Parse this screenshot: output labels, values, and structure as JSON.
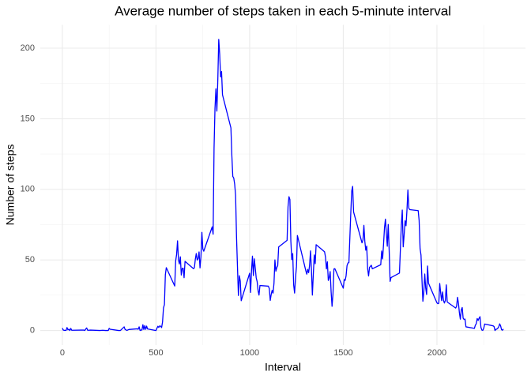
{
  "chart_data": {
    "type": "line",
    "title": "Average number of steps taken in each 5-minute interval",
    "xlabel": "Interval",
    "ylabel": "Number of steps",
    "xlim": [
      -117.75,
      2472.75
    ],
    "ylim": [
      -10.3,
      216.5
    ],
    "xticks": [
      0,
      500,
      1000,
      1500,
      2000
    ],
    "yticks": [
      0,
      50,
      100,
      150,
      200
    ],
    "x_minor_ticks": [
      250,
      750,
      1250,
      1750,
      2250
    ],
    "y_minor_ticks": [
      25,
      75,
      125,
      175
    ],
    "grid": true,
    "series": [
      {
        "name": "steps",
        "color": "#0000ff",
        "x": [
          0,
          5,
          10,
          20,
          25,
          30,
          35,
          40,
          45,
          50,
          55,
          100,
          115,
          120,
          125,
          130,
          135,
          140,
          150,
          200,
          215,
          230,
          245,
          250,
          255,
          300,
          310,
          330,
          335,
          345,
          355,
          400,
          405,
          410,
          415,
          420,
          425,
          430,
          435,
          440,
          445,
          450,
          455,
          500,
          505,
          510,
          515,
          520,
          525,
          530,
          535,
          540,
          545,
          550,
          555,
          600,
          605,
          610,
          615,
          620,
          625,
          630,
          635,
          640,
          645,
          650,
          655,
          700,
          705,
          710,
          715,
          720,
          725,
          730,
          735,
          740,
          745,
          750,
          755,
          800,
          805,
          810,
          815,
          820,
          825,
          830,
          835,
          840,
          845,
          850,
          855,
          900,
          905,
          910,
          915,
          920,
          925,
          930,
          935,
          940,
          945,
          950,
          955,
          1000,
          1005,
          1010,
          1015,
          1020,
          1025,
          1030,
          1035,
          1040,
          1045,
          1050,
          1055,
          1100,
          1105,
          1110,
          1115,
          1120,
          1125,
          1130,
          1135,
          1140,
          1145,
          1150,
          1155,
          1200,
          1205,
          1210,
          1215,
          1220,
          1225,
          1230,
          1235,
          1240,
          1245,
          1250,
          1255,
          1300,
          1305,
          1310,
          1315,
          1320,
          1325,
          1330,
          1335,
          1340,
          1345,
          1350,
          1355,
          1400,
          1405,
          1410,
          1415,
          1420,
          1425,
          1430,
          1435,
          1440,
          1445,
          1450,
          1455,
          1500,
          1505,
          1510,
          1515,
          1520,
          1525,
          1530,
          1535,
          1540,
          1545,
          1550,
          1555,
          1600,
          1605,
          1610,
          1615,
          1620,
          1625,
          1630,
          1635,
          1640,
          1645,
          1650,
          1655,
          1700,
          1705,
          1710,
          1715,
          1720,
          1725,
          1730,
          1735,
          1740,
          1745,
          1750,
          1755,
          1800,
          1805,
          1810,
          1815,
          1820,
          1825,
          1830,
          1835,
          1840,
          1845,
          1850,
          1855,
          1900,
          1905,
          1910,
          1915,
          1920,
          1925,
          1930,
          1935,
          1940,
          1945,
          1950,
          1955,
          2000,
          2005,
          2010,
          2015,
          2020,
          2025,
          2030,
          2035,
          2040,
          2045,
          2050,
          2055,
          2100,
          2105,
          2110,
          2115,
          2120,
          2125,
          2130,
          2135,
          2140,
          2145,
          2150,
          2155,
          2200,
          2205,
          2210,
          2215,
          2220,
          2225,
          2230,
          2235,
          2240,
          2245,
          2250,
          2255,
          2300,
          2305,
          2310,
          2315,
          2320,
          2325,
          2330,
          2335,
          2340,
          2345,
          2350,
          2355
        ],
        "values": [
          1.7,
          0.3,
          0.1,
          0.1,
          2.1,
          0.5,
          0.9,
          0,
          1.5,
          0.2,
          0.2,
          0.3,
          0.3,
          0,
          1.1,
          1.8,
          0.2,
          0.2,
          0.3,
          0,
          0.2,
          0,
          0,
          1.5,
          0.9,
          0,
          0,
          2.6,
          0.7,
          0.1,
          0.7,
          1.2,
          0.9,
          2.6,
          0,
          0.3,
          0.4,
          4.1,
          0.7,
          3.5,
          0.8,
          3.1,
          1.1,
          0,
          1.6,
          3,
          2.2,
          3.3,
          3,
          2.1,
          6.1,
          16,
          18.3,
          39.5,
          44.5,
          31.5,
          49.3,
          53.8,
          63.5,
          50,
          47.1,
          52.2,
          39.3,
          44,
          44.2,
          37.4,
          49,
          43.8,
          44.4,
          50.5,
          54.5,
          49.9,
          51,
          55.7,
          44.3,
          52.3,
          69.5,
          57.8,
          56.2,
          73.4,
          68.2,
          129.4,
          157.5,
          171.2,
          155.4,
          177.3,
          206.2,
          195.9,
          179.6,
          183.4,
          167,
          143.5,
          124,
          109.1,
          108.1,
          103.7,
          95.9,
          66.2,
          45.2,
          24.8,
          38.8,
          35,
          21.1,
          40.6,
          27,
          42.4,
          52.7,
          38.9,
          50.8,
          44.3,
          37.4,
          34.7,
          28.3,
          25.1,
          31.9,
          31.4,
          29.7,
          21.3,
          25.5,
          28.4,
          26.5,
          33.4,
          50,
          42,
          44.6,
          46,
          59.2,
          63.9,
          87.7,
          94.8,
          92.8,
          63.4,
          50.2,
          54.5,
          32.4,
          26.5,
          37.7,
          45.1,
          67.3,
          42.3,
          39.9,
          43.3,
          41,
          46.2,
          56.4,
          42.8,
          25.1,
          40,
          53.5,
          47.3,
          60.8,
          55.8,
          52,
          43.6,
          48.7,
          35.5,
          37.5,
          41.8,
          27.5,
          17.1,
          26.1,
          43.6,
          43.8,
          30,
          36.1,
          35.5,
          38.8,
          46,
          47.8,
          48.1,
          65.3,
          82.9,
          98.7,
          102.1,
          84,
          62.1,
          64.1,
          74.5,
          63.2,
          56.9,
          59.8,
          43.9,
          38.6,
          44.7,
          45.5,
          46.2,
          43.7,
          46.6,
          56.3,
          50.7,
          61.2,
          72.7,
          78.9,
          68.9,
          59.7,
          75.1,
          56.5,
          34.8,
          37.5,
          40.7,
          58,
          74.7,
          85.3,
          59.3,
          67.8,
          77.7,
          74.2,
          85.3,
          99.5,
          86.6,
          85.6,
          84.9,
          77.8,
          58,
          53.4,
          36.3,
          20.7,
          27.4,
          40,
          30.2,
          25.5,
          45.7,
          33.5,
          19.6,
          19,
          19.3,
          33.3,
          26.8,
          21.2,
          27.3,
          21.3,
          19.5,
          21.3,
          32.3,
          20.2,
          15.9,
          17.2,
          23.5,
          19.2,
          12.5,
          8,
          14.7,
          16.3,
          8.7,
          7.8,
          8.1,
          2.6,
          1.5,
          3.7,
          4.8,
          8.5,
          7.1,
          8.7,
          9.8,
          2.2,
          0.3,
          0.1,
          1.6,
          4.6,
          3.3,
          2.8,
          0,
          0.8,
          1,
          1.6,
          2.6,
          4.7,
          3.3,
          0.6,
          0.2,
          1.1
        ]
      }
    ]
  }
}
